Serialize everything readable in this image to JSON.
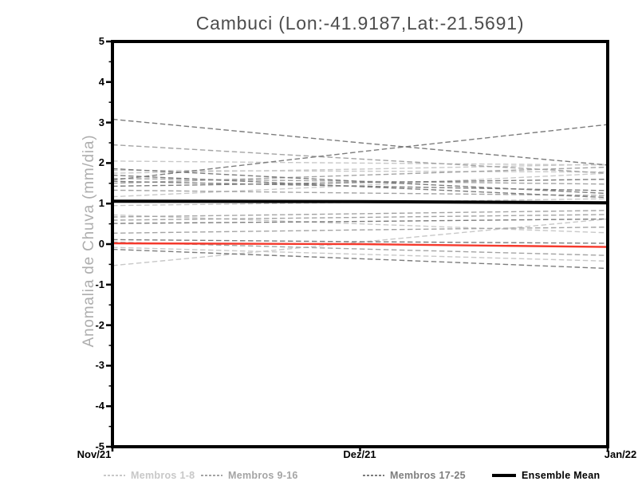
{
  "chart_data": {
    "type": "line",
    "title": "Cambuci (Lon:-41.9187,Lat:-21.5691)",
    "ylabel": "Anomalia de Chuva (mm/dia)",
    "xlabel": "",
    "ylim": [
      -5,
      5
    ],
    "y_major_tick_step": 1,
    "y_minor_tick_step": 0.5,
    "y_tick_labels": [
      "5",
      "4",
      "3",
      "2",
      "1",
      "0",
      "-1",
      "-2",
      "-3",
      "-4",
      "-5"
    ],
    "x_tick_labels": [
      "Nov/21",
      "Dez/21",
      "Jan/22"
    ],
    "x": [
      "Nov/21",
      "Dez/21",
      "Jan/22"
    ],
    "grid": false,
    "legend_position": "bottom",
    "series": [
      {
        "name": "Membros 1-8",
        "color": "#c8c8c8",
        "line_style": "dashed",
        "line_width": 1.4,
        "members": [
          [
            2.05,
            2.0,
            1.95
          ],
          [
            1.82,
            1.8,
            1.78
          ],
          [
            1.17,
            1.45,
            1.75
          ],
          [
            0.95,
            1.03,
            1.12
          ],
          [
            0.72,
            0.5,
            0.28
          ],
          [
            -0.08,
            -0.25,
            -0.42
          ],
          [
            -0.53,
            0.05,
            0.62
          ],
          [
            1.75,
            1.85,
            1.97
          ]
        ]
      },
      {
        "name": "Membros 9-16",
        "color": "#a4a4a4",
        "line_style": "dashed",
        "line_width": 1.4,
        "members": [
          [
            2.45,
            2.1,
            1.75
          ],
          [
            1.62,
            1.55,
            1.48
          ],
          [
            1.5,
            1.7,
            1.9
          ],
          [
            0.67,
            0.75,
            0.83
          ],
          [
            0.59,
            0.66,
            0.73
          ],
          [
            0.27,
            0.35,
            0.42
          ],
          [
            0.05,
            -0.12,
            -0.28
          ],
          [
            1.33,
            1.26,
            1.2
          ]
        ]
      },
      {
        "name": "Membros 17-25",
        "color": "#7d7d7d",
        "line_style": "dashed",
        "line_width": 1.4,
        "members": [
          [
            3.08,
            2.5,
            1.95
          ],
          [
            1.58,
            2.28,
            2.95
          ],
          [
            1.86,
            1.55,
            1.25
          ],
          [
            1.7,
            1.42,
            1.15
          ],
          [
            1.55,
            1.43,
            1.32
          ],
          [
            1.43,
            1.52,
            1.6
          ],
          [
            0.51,
            0.56,
            0.62
          ],
          [
            0.11,
            0.06,
            0.02
          ],
          [
            -0.13,
            -0.36,
            -0.6
          ]
        ]
      },
      {
        "name": "Ensemble Mean",
        "color": "#000000",
        "line_style": "solid",
        "line_width": 4,
        "values": [
          1.06,
          1.05,
          1.02
        ]
      },
      {
        "name": "red-reference-line",
        "color": "#f5392c",
        "line_style": "solid",
        "line_width": 2.4,
        "values": [
          0.02,
          0.0,
          -0.07
        ],
        "show_in_legend": false
      }
    ],
    "legend": {
      "entries": [
        {
          "label": "Membros 1-8",
          "color": "#c8c8c8",
          "style": "dashed"
        },
        {
          "label": "Membros 9-16",
          "color": "#a4a4a4",
          "style": "dashed"
        },
        {
          "label": "Membros 17-25",
          "color": "#7d7d7d",
          "style": "dashed"
        },
        {
          "label": "Ensemble Mean",
          "color": "#000000",
          "style": "solid"
        }
      ]
    },
    "frame_color": "#000000"
  }
}
